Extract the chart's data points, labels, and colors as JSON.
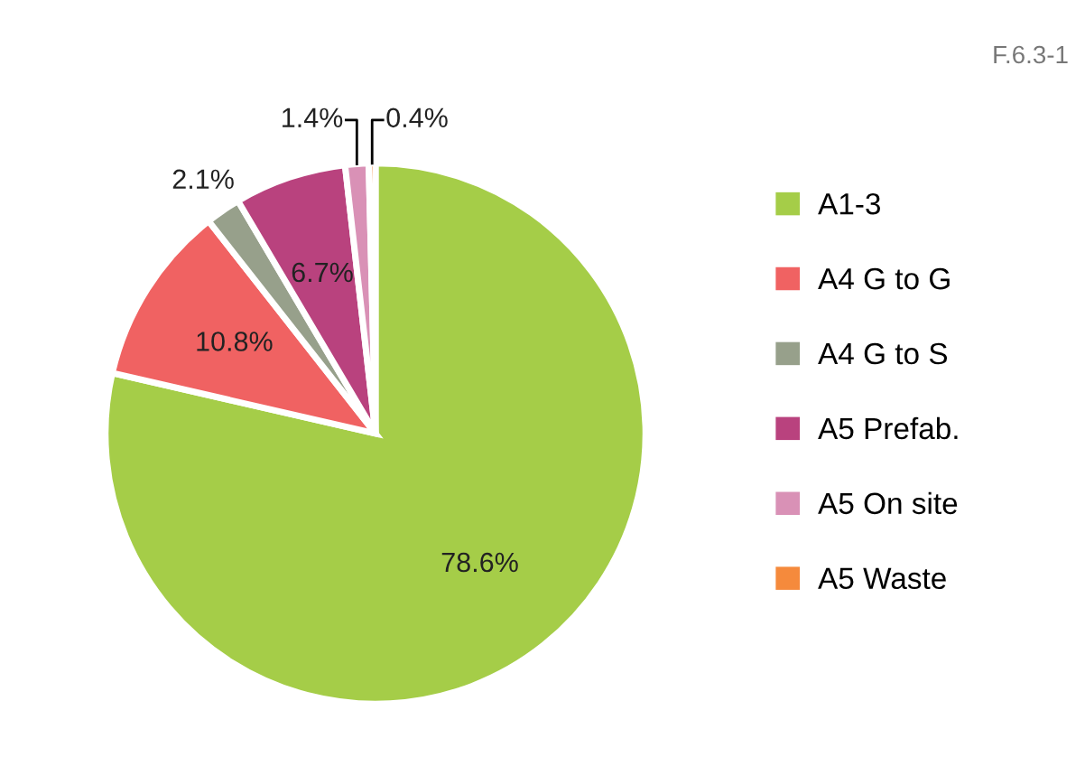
{
  "chart_data": {
    "type": "pie",
    "categories": [
      "A1-3",
      "A4 G to G",
      "A4 G to S",
      "A5 Prefab.",
      "A5 On site",
      "A5 Waste"
    ],
    "values": [
      78.6,
      10.8,
      2.1,
      6.7,
      1.4,
      0.4
    ],
    "value_labels": [
      "78.6%",
      "10.8%",
      "2.1%",
      "6.7%",
      "1.4%",
      "0.4%"
    ],
    "colors": [
      "#a5cd48",
      "#f06262",
      "#97a08b",
      "#b9427e",
      "#d991b6",
      "#f58a3c"
    ],
    "legend": "right",
    "annotations": [
      "F.6.3-1"
    ]
  }
}
